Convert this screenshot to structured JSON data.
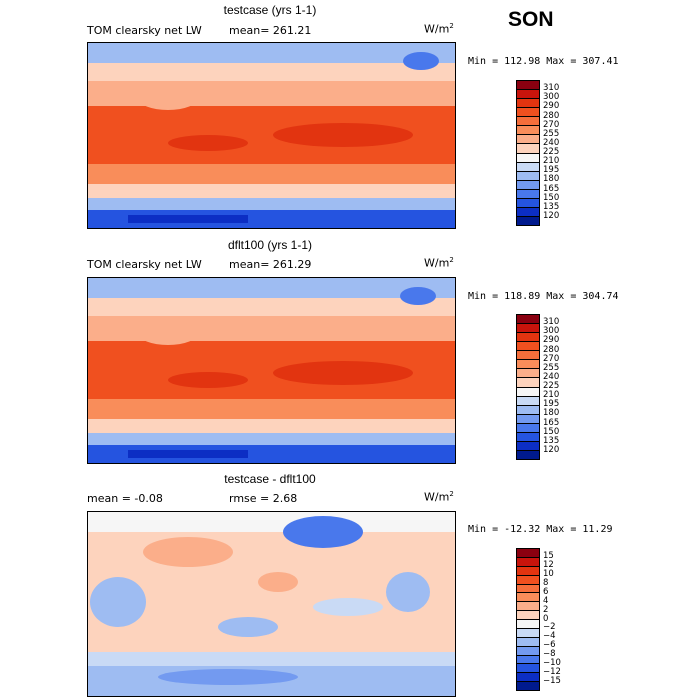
{
  "season": "SON",
  "panels": [
    {
      "title": "testcase (yrs 1-1)",
      "variable": "TOM clearsky net LW",
      "stat": "mean= 261.21",
      "units": "W/m",
      "units_exp": "2",
      "minmax": "Min = 112.98 Max = 307.41",
      "colorbar_labels": [
        "310",
        "300",
        "290",
        "280",
        "270",
        "255",
        "240",
        "225",
        "210",
        "195",
        "180",
        "165",
        "150",
        "135",
        "120"
      ],
      "colorbar_colors": [
        "#8a0010",
        "#c8140c",
        "#e23410",
        "#f0501f",
        "#f56e3b",
        "#f98d5a",
        "#fbae8a",
        "#fdd3bd",
        "#f6f6f6",
        "#c9daf5",
        "#9ebcf2",
        "#739af0",
        "#4978ec",
        "#2554e0",
        "#0c2ec4",
        "#001a8e"
      ]
    },
    {
      "title": "dflt100 (yrs 1-1)",
      "variable": "TOM clearsky net LW",
      "stat": "mean= 261.29",
      "units": "W/m",
      "units_exp": "2",
      "minmax": "Min = 118.89 Max = 304.74",
      "colorbar_labels": [
        "310",
        "300",
        "290",
        "280",
        "270",
        "255",
        "240",
        "225",
        "210",
        "195",
        "180",
        "165",
        "150",
        "135",
        "120"
      ],
      "colorbar_colors": [
        "#8a0010",
        "#c8140c",
        "#e23410",
        "#f0501f",
        "#f56e3b",
        "#f98d5a",
        "#fbae8a",
        "#fdd3bd",
        "#f6f6f6",
        "#c9daf5",
        "#9ebcf2",
        "#739af0",
        "#4978ec",
        "#2554e0",
        "#0c2ec4",
        "#001a8e"
      ]
    },
    {
      "title": "testcase - dflt100",
      "mean_text": "mean =   -0.08",
      "rmse_text": "rmse =    2.68",
      "units": "W/m",
      "units_exp": "2",
      "minmax": "Min = -12.32 Max =  11.29",
      "colorbar_labels": [
        "15",
        "12",
        "10",
        "8",
        "6",
        "4",
        "2",
        "0",
        "−2",
        "−4",
        "−6",
        "−8",
        "−10",
        "−12",
        "−15"
      ],
      "colorbar_colors": [
        "#8a0010",
        "#c8140c",
        "#e23410",
        "#f0501f",
        "#f56e3b",
        "#f98d5a",
        "#fbae8a",
        "#fdd3bd",
        "#f6f6f6",
        "#c9daf5",
        "#9ebcf2",
        "#739af0",
        "#4978ec",
        "#2554e0",
        "#0c2ec4",
        "#001a8e"
      ]
    }
  ]
}
